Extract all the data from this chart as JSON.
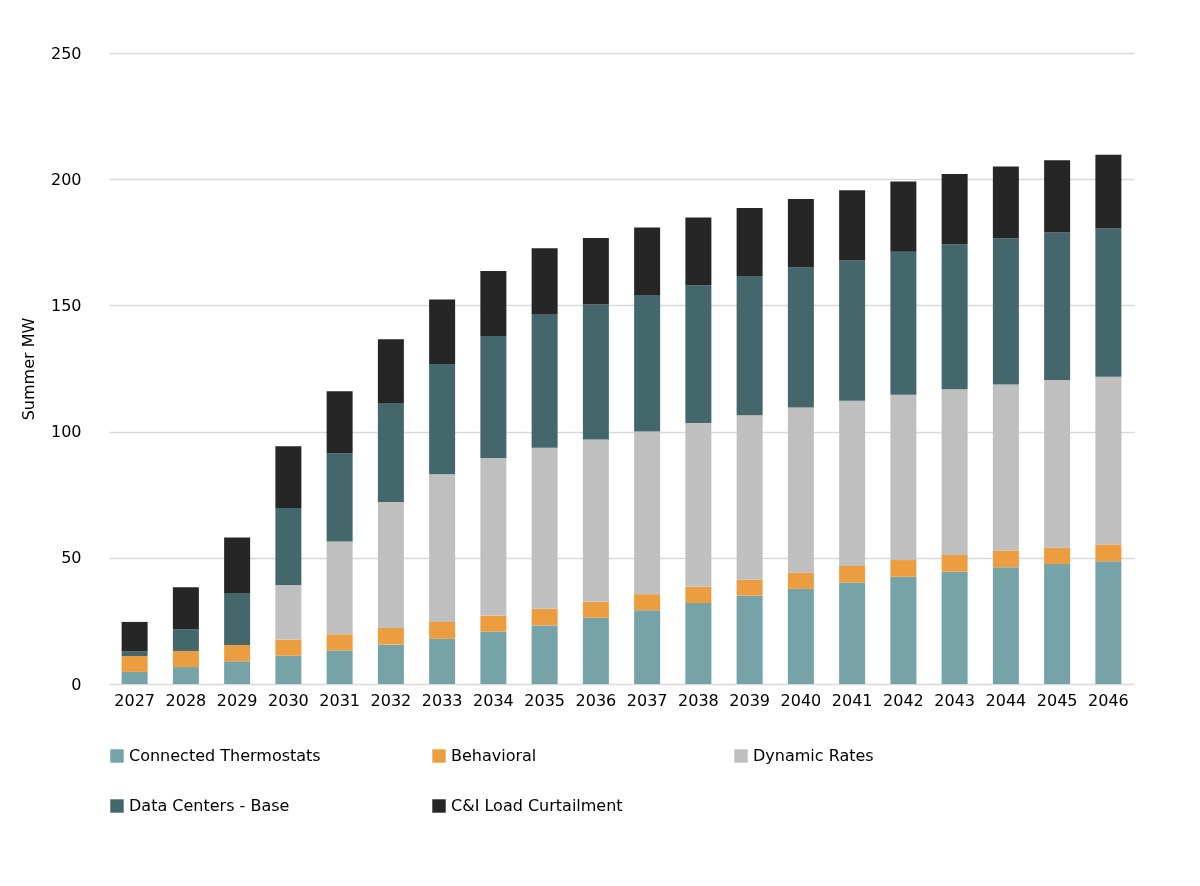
{
  "chart_data": {
    "type": "bar",
    "stacked": true,
    "ylabel": "Summer MW",
    "categories": [
      "2027",
      "2028",
      "2029",
      "2030",
      "2031",
      "2032",
      "2033",
      "2034",
      "2035",
      "2036",
      "2037",
      "2038",
      "2039",
      "2040",
      "2041",
      "2042",
      "2043",
      "2044",
      "2045",
      "2046"
    ],
    "series": [
      {
        "name": "Connected Thermostats",
        "color": "#76a3a8",
        "values": [
          4.8,
          6.7,
          9.0,
          11.2,
          13.3,
          15.6,
          17.9,
          20.7,
          23.2,
          26.3,
          29.2,
          32.1,
          35.0,
          37.7,
          40.2,
          42.5,
          44.5,
          46.3,
          47.5,
          48.6
        ]
      },
      {
        "name": "Behavioral",
        "color": "#eb9d40",
        "values": [
          6.3,
          6.4,
          6.5,
          6.4,
          6.4,
          6.6,
          6.7,
          6.4,
          6.6,
          6.3,
          6.4,
          6.4,
          6.3,
          6.4,
          6.6,
          6.6,
          6.6,
          6.6,
          6.5,
          6.7
        ]
      },
      {
        "name": "Dynamic Rates",
        "color": "#bfbfbf",
        "values": [
          0,
          0,
          0,
          21.6,
          36.8,
          49.9,
          58.5,
          62.4,
          63.8,
          64.3,
          64.4,
          64.9,
          65.2,
          65.4,
          65.4,
          65.5,
          65.7,
          65.8,
          66.4,
          66.4
        ]
      },
      {
        "name": "Data Centers - Base",
        "color": "#43676b",
        "values": [
          1.9,
          8.6,
          20.6,
          30.5,
          34.9,
          39.2,
          43.7,
          48.4,
          53.0,
          53.5,
          54.1,
          54.6,
          55.1,
          55.5,
          55.6,
          56.7,
          57.4,
          57.9,
          58.5,
          58.8
        ]
      },
      {
        "name": "C&I Load Curtailment",
        "color": "#262626",
        "values": [
          11.6,
          16.6,
          21.9,
          24.5,
          24.6,
          25.3,
          25.5,
          25.7,
          26.0,
          26.3,
          26.8,
          26.8,
          27.0,
          27.2,
          27.8,
          27.8,
          27.9,
          28.4,
          28.6,
          29.2
        ]
      }
    ],
    "ylim": [
      0,
      250
    ],
    "yticks": [
      0,
      50,
      100,
      150,
      200,
      250
    ],
    "grid": "y",
    "legend": "bottom"
  }
}
